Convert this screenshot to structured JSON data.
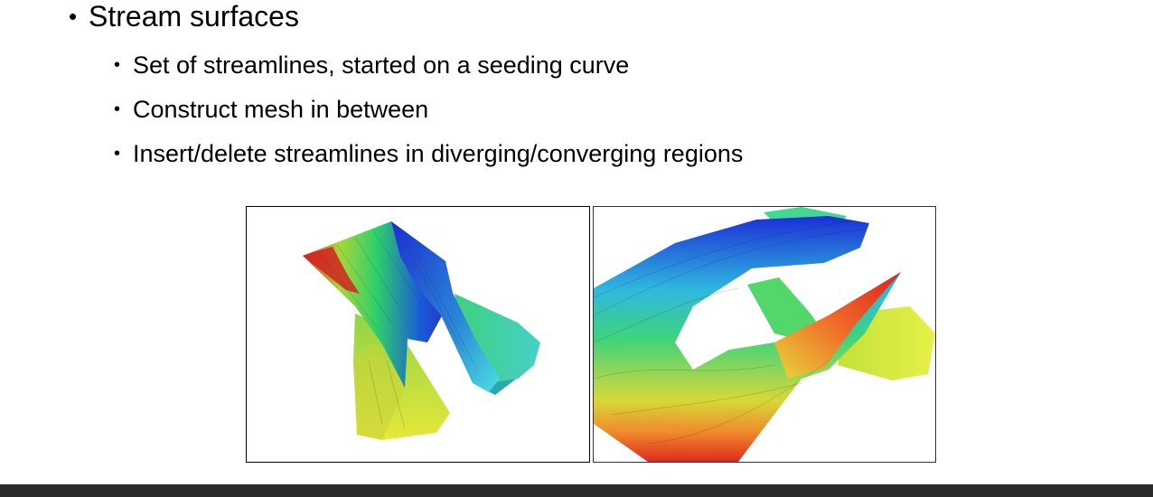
{
  "slide": {
    "heading": "Stream surfaces",
    "bullets": [
      "Set of streamlines, started on a seeding curve",
      "Construct mesh in between",
      "Insert/delete streamlines in diverging/converging regions"
    ]
  },
  "figures": [
    {
      "description_icon": "stream-surface-image"
    },
    {
      "description_icon": "stream-surface-image"
    }
  ],
  "colors": {
    "text": "#000000",
    "bottom_bar": "#2b2b2b"
  }
}
